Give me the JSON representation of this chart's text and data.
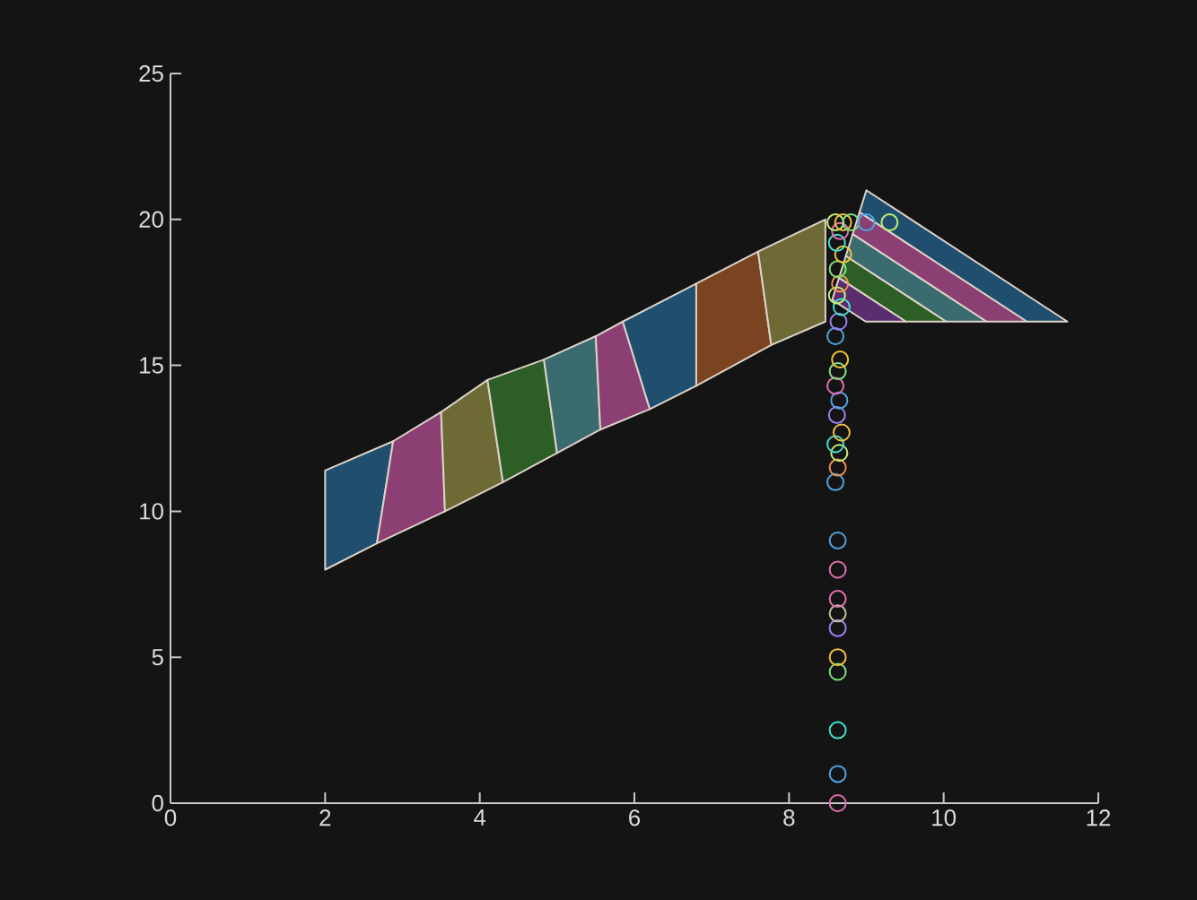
{
  "chart_data": {
    "type": "scatter",
    "marker": "circle",
    "grid": false,
    "x": [
      8.63,
      8.63,
      8.63,
      8.63,
      8.63,
      8.63,
      8.63,
      8.63,
      8.63,
      8.63,
      8.6,
      8.63,
      8.65,
      8.6,
      8.68,
      8.62,
      8.65,
      8.6,
      8.63,
      8.66,
      8.6,
      8.64,
      8.68,
      8.62,
      8.66,
      8.63,
      8.7,
      8.62,
      8.66,
      8.6,
      8.7,
      8.8,
      9.0,
      9.3
    ],
    "values": [
      0,
      1,
      2.5,
      4.5,
      5,
      6,
      6.5,
      7,
      8,
      9,
      11,
      11.5,
      12,
      12.3,
      12.7,
      13.3,
      13.8,
      14.3,
      14.8,
      15.2,
      16,
      16.5,
      17,
      17.4,
      17.8,
      18.3,
      18.8,
      19.2,
      19.6,
      19.9,
      19.9,
      19.9,
      19.9,
      19.9
    ],
    "colors": [
      "#e070b0",
      "#4fa3e0",
      "#40e0d0",
      "#80e080",
      "#f0c040",
      "#a080f0",
      "#c0c0a0",
      "#e070b0",
      "#e070b0",
      "#4fa3e0",
      "#4fa3e0",
      "#f09050",
      "#c0f070",
      "#40e0d0",
      "#f0c040",
      "#a080f0",
      "#4fa3e0",
      "#e070b0",
      "#80e080",
      "#f0c040",
      "#4fa3e0",
      "#a080f0",
      "#40e0d0",
      "#c0f070",
      "#f09050",
      "#80e080",
      "#f0c040",
      "#40e0d0",
      "#e070b0",
      "#c0f070",
      "#f0c040",
      "#80e080",
      "#4fa3e0",
      "#c0f070"
    ],
    "xlim": [
      0,
      12
    ],
    "ylim": [
      0,
      25
    ],
    "xticks": [
      0,
      2,
      4,
      6,
      8,
      10,
      12
    ],
    "yticks": [
      0,
      5,
      10,
      15,
      20,
      25
    ]
  }
}
